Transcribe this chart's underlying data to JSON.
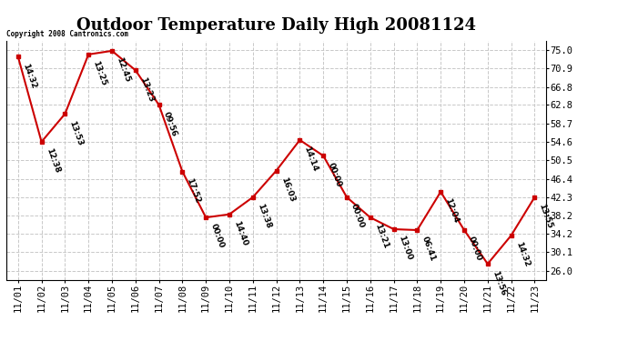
{
  "title": "Outdoor Temperature Daily High 20081124",
  "copyright_text": "Copyright 2008 Cantronics.com",
  "x_labels": [
    "11/01",
    "11/02",
    "11/03",
    "11/04",
    "11/05",
    "11/06",
    "11/07",
    "11/08",
    "11/09",
    "11/10",
    "11/11",
    "11/12",
    "11/13",
    "11/14",
    "11/15",
    "11/16",
    "11/17",
    "11/18",
    "11/19",
    "11/20",
    "11/21",
    "11/22",
    "11/23"
  ],
  "y_values": [
    73.5,
    54.6,
    60.8,
    74.0,
    74.8,
    70.5,
    62.8,
    48.0,
    37.8,
    38.5,
    42.3,
    48.2,
    55.0,
    51.5,
    42.3,
    37.8,
    35.2,
    35.0,
    43.5,
    35.0,
    27.5,
    33.8,
    42.3
  ],
  "time_labels": [
    "14:32",
    "12:38",
    "13:53",
    "13:25",
    "12:45",
    "13:23",
    "09:56",
    "17:52",
    "00:00",
    "14:40",
    "13:38",
    "16:03",
    "14:14",
    "00:00",
    "00:00",
    "13:21",
    "13:00",
    "06:41",
    "12:04",
    "00:00",
    "13:56",
    "14:32",
    "13:55"
  ],
  "y_ticks": [
    26.0,
    30.1,
    34.2,
    38.2,
    42.3,
    46.4,
    50.5,
    54.6,
    58.7,
    62.8,
    66.8,
    70.9,
    75.0
  ],
  "line_color": "#cc0000",
  "marker_color": "#cc0000",
  "background_color": "#ffffff",
  "grid_color": "#c8c8c8",
  "title_fontsize": 13,
  "tick_fontsize": 7.5,
  "annotation_fontsize": 6.5
}
